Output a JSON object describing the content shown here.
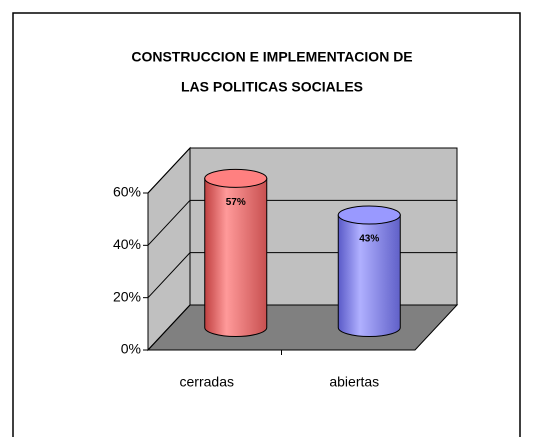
{
  "chart_data": {
    "type": "bar3d",
    "title": [
      "CONSTRUCCION E IMPLEMENTACION DE",
      "LAS POLITICAS SOCIALES"
    ],
    "categories": [
      "cerradas",
      "abiertas"
    ],
    "values": [
      57,
      43
    ],
    "value_labels": [
      "57%",
      "43%"
    ],
    "colors": [
      "#ff8080",
      "#9999ff"
    ],
    "ylim": [
      0,
      60
    ],
    "yticks": [
      {
        "value": 0,
        "label": "0%"
      },
      {
        "value": 20,
        "label": "20%"
      },
      {
        "value": 40,
        "label": "40%"
      },
      {
        "value": 60,
        "label": "60%"
      }
    ],
    "grid": true
  }
}
